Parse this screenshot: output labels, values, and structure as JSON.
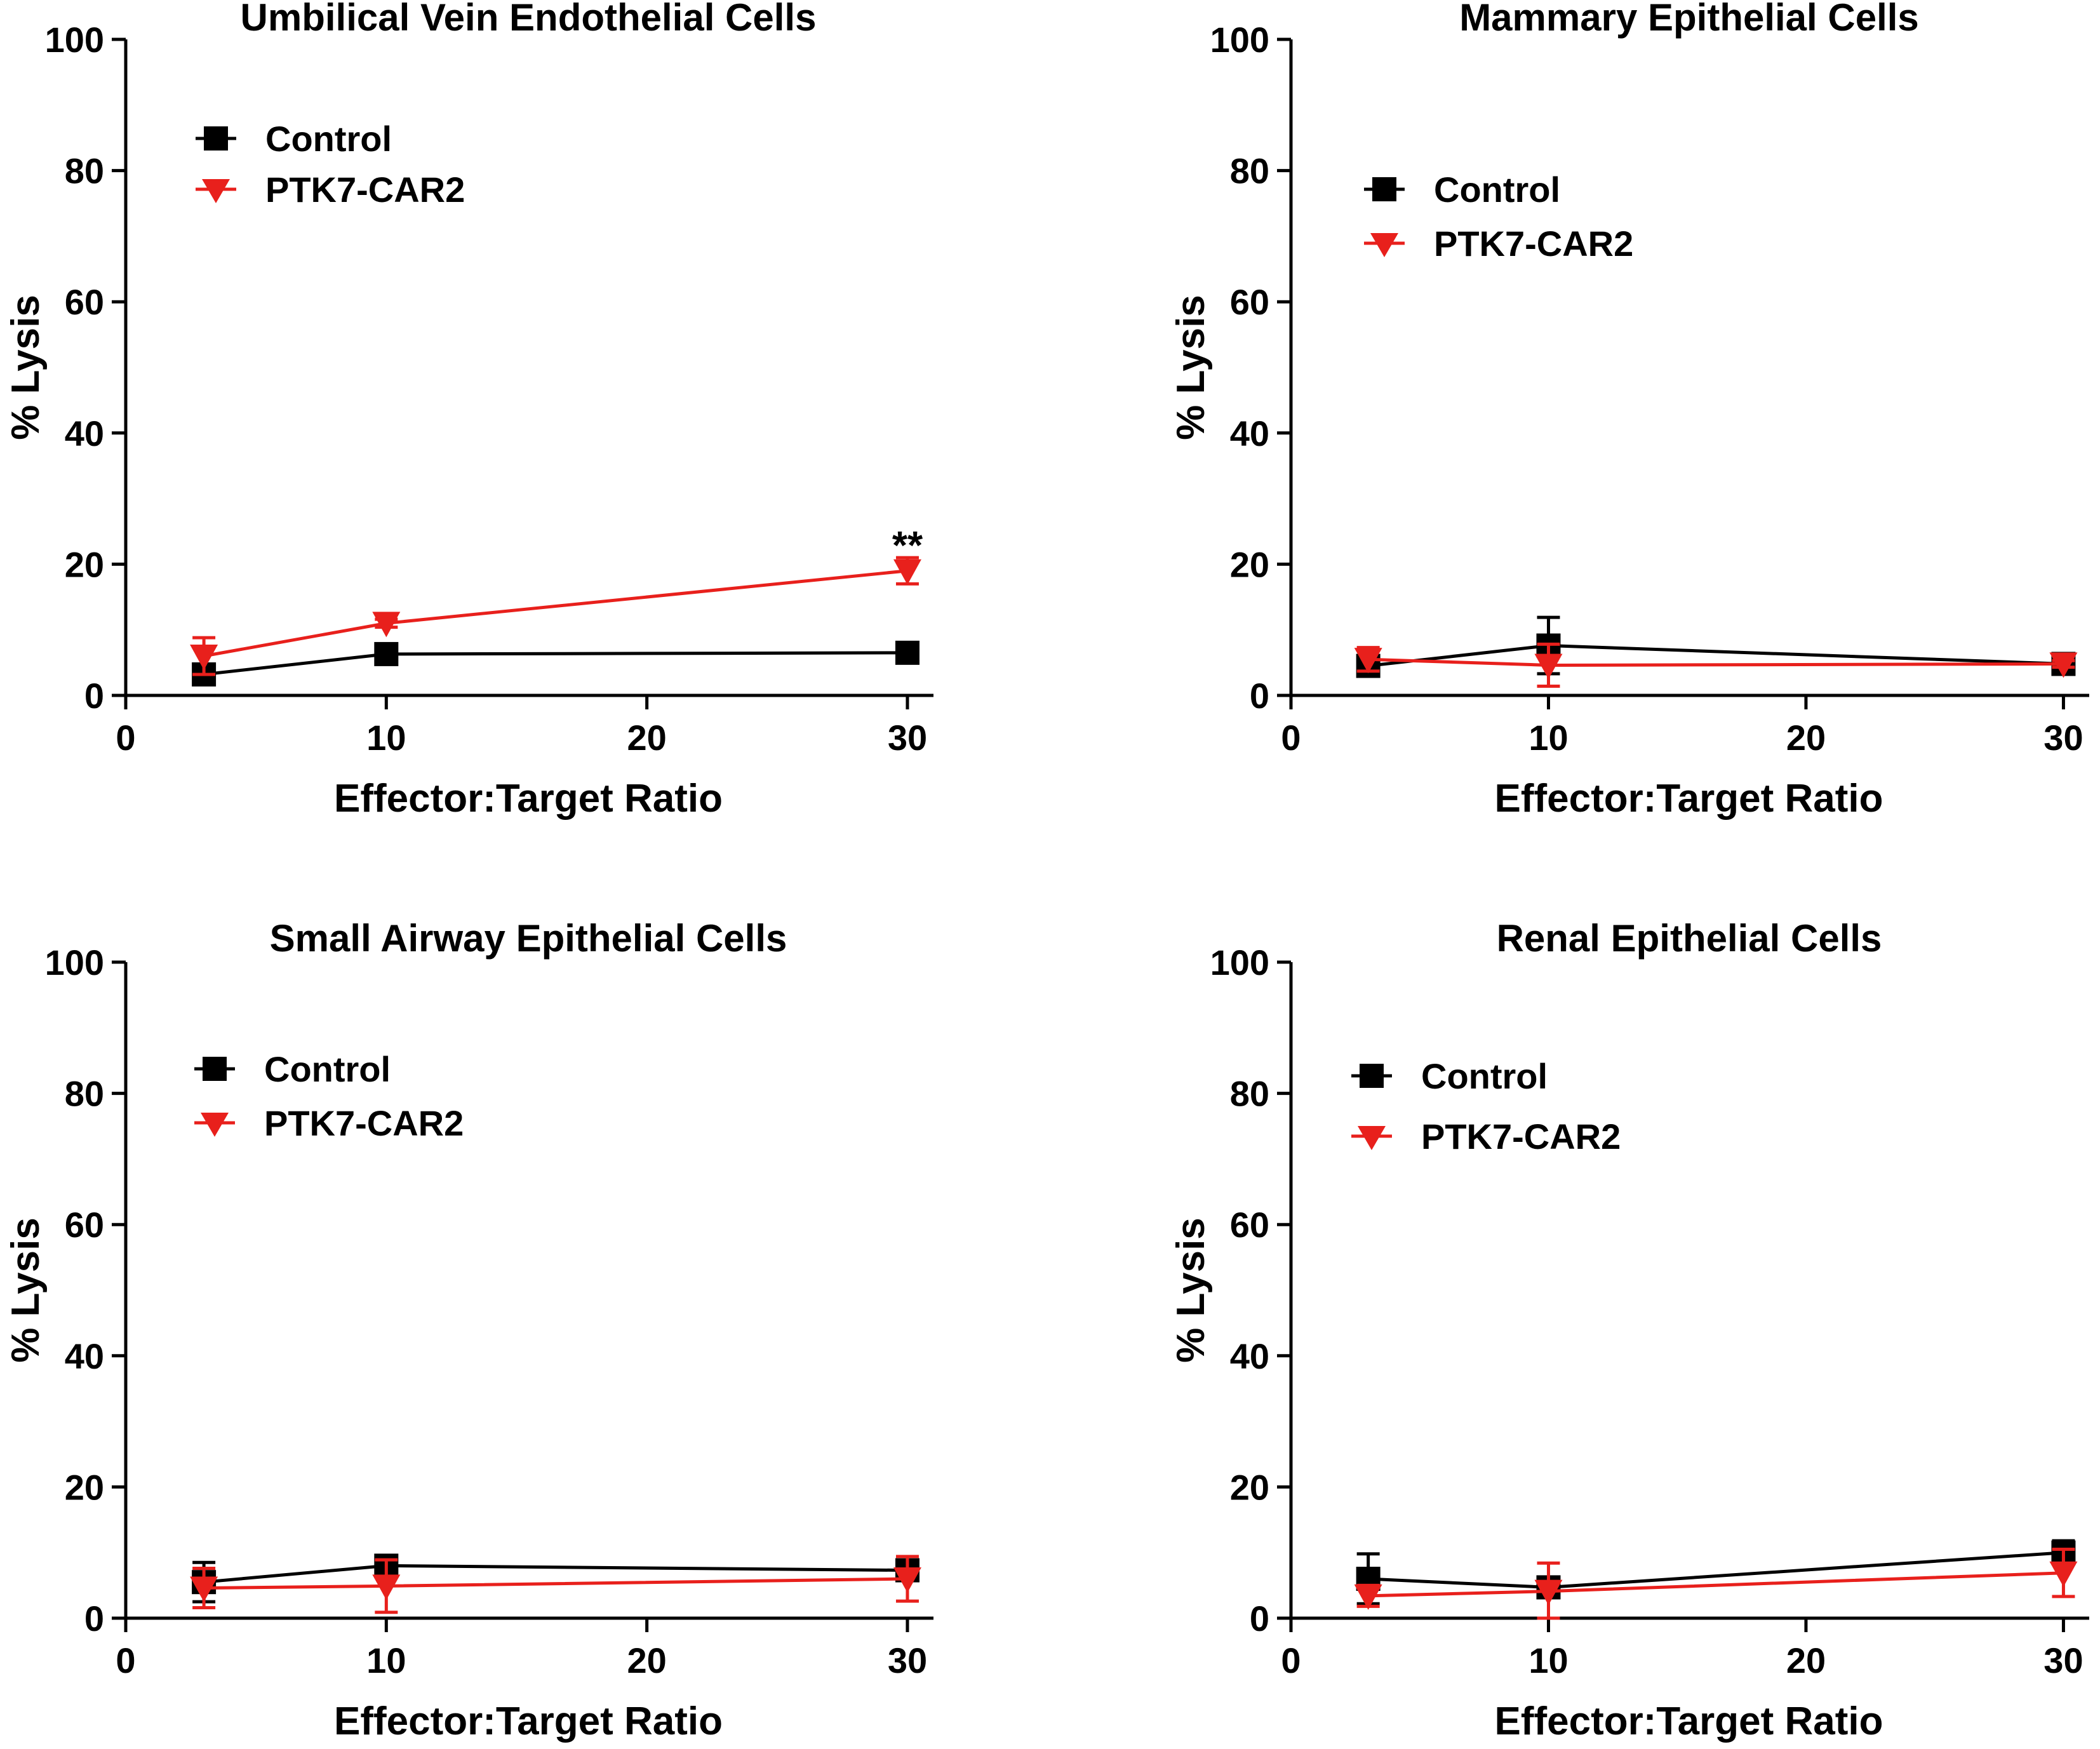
{
  "chart_data": [
    {
      "type": "line",
      "title": "Umbilical Vein Endothelial Cells",
      "xlabel": "Effector:Target Ratio",
      "ylabel": "% Lysis",
      "xlim": [
        0,
        31
      ],
      "ylim": [
        0,
        100
      ],
      "xticks": [
        0,
        10,
        20,
        30
      ],
      "yticks": [
        0,
        20,
        40,
        60,
        80,
        100
      ],
      "x": [
        3,
        10,
        30
      ],
      "legend_position": "top-left",
      "series": [
        {
          "name": "Control",
          "color": "#000000",
          "marker": "square",
          "values": [
            3.2,
            6.3,
            6.5
          ],
          "errors": [
            0.6,
            0.8,
            0.6
          ]
        },
        {
          "name": "PTK7-CAR2",
          "color": "#e8201c",
          "marker": "triangle-down",
          "values": [
            6.0,
            11.0,
            19.0
          ],
          "errors": [
            2.8,
            0.6,
            2.0
          ]
        }
      ],
      "annotations": [
        {
          "text": "**",
          "x": 30,
          "y": 23.5
        }
      ]
    },
    {
      "type": "line",
      "title": "Mammary Epithelial Cells",
      "xlabel": "Effector:Target Ratio",
      "ylabel": "% Lysis",
      "xlim": [
        0,
        31
      ],
      "ylim": [
        0,
        100
      ],
      "xticks": [
        0,
        10,
        20,
        30
      ],
      "yticks": [
        0,
        20,
        40,
        60,
        80,
        100
      ],
      "x": [
        3,
        10,
        30
      ],
      "legend_position": "top-left",
      "series": [
        {
          "name": "Control",
          "color": "#000000",
          "marker": "square",
          "values": [
            4.5,
            7.6,
            4.8
          ],
          "errors": [
            0.8,
            4.3,
            0.5
          ]
        },
        {
          "name": "PTK7-CAR2",
          "color": "#e8201c",
          "marker": "triangle-down",
          "values": [
            5.5,
            4.6,
            4.8
          ],
          "errors": [
            1.8,
            3.2,
            0.5
          ]
        }
      ],
      "annotations": []
    },
    {
      "type": "line",
      "title": "Small Airway Epithelial Cells",
      "xlabel": "Effector:Target Ratio",
      "ylabel": "% Lysis",
      "xlim": [
        0,
        31
      ],
      "ylim": [
        0,
        100
      ],
      "xticks": [
        0,
        10,
        20,
        30
      ],
      "yticks": [
        0,
        20,
        40,
        60,
        80,
        100
      ],
      "x": [
        3,
        10,
        30
      ],
      "legend_position": "top-left",
      "series": [
        {
          "name": "Control",
          "color": "#000000",
          "marker": "square",
          "values": [
            5.5,
            8.0,
            7.3
          ],
          "errors": [
            3.0,
            1.5,
            1.5
          ]
        },
        {
          "name": "PTK7-CAR2",
          "color": "#e8201c",
          "marker": "triangle-down",
          "values": [
            4.6,
            4.9,
            6.0
          ],
          "errors": [
            3.0,
            4.0,
            3.4
          ]
        }
      ],
      "annotations": []
    },
    {
      "type": "line",
      "title": "Renal Epithelial Cells",
      "xlabel": "Effector:Target Ratio",
      "ylabel": "% Lysis",
      "xlim": [
        0,
        31
      ],
      "ylim": [
        0,
        100
      ],
      "xticks": [
        0,
        10,
        20,
        30
      ],
      "yticks": [
        0,
        20,
        40,
        60,
        80,
        100
      ],
      "x": [
        3,
        10,
        30
      ],
      "legend_position": "top-left",
      "series": [
        {
          "name": "Control",
          "color": "#000000",
          "marker": "square",
          "values": [
            6.0,
            4.7,
            10.0
          ],
          "errors": [
            3.8,
            1.2,
            1.8
          ]
        },
        {
          "name": "PTK7-CAR2",
          "color": "#e8201c",
          "marker": "triangle-down",
          "values": [
            3.4,
            4.1,
            6.9
          ],
          "errors": [
            1.6,
            4.3,
            3.6
          ]
        }
      ],
      "annotations": []
    }
  ]
}
